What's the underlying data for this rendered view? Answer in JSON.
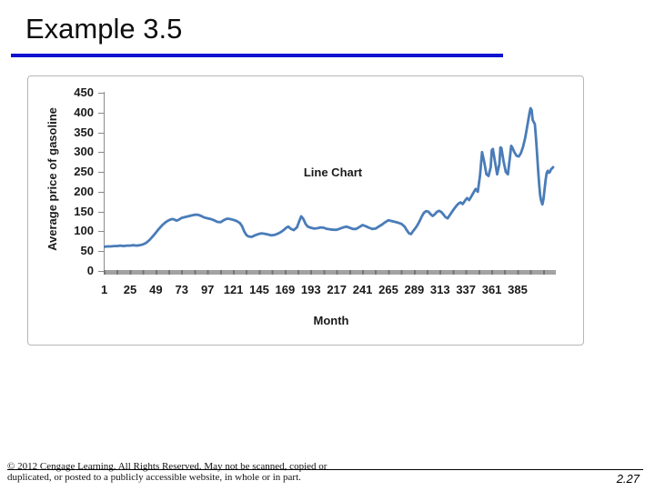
{
  "slide": {
    "title": "Example 3.5",
    "page_number": "2.27",
    "footer_line1": "© 2012 Cengage Learning. All Rights Reserved. May not be scanned, copied or",
    "footer_line2": "duplicated, or posted to a publicly accessible website, in whole or in part."
  },
  "colors": {
    "title_underline": "#1010d0",
    "series_line": "#4a7cb8",
    "axis_gray": "#8a8a8a",
    "chart_border": "#b6b6b6"
  },
  "chart_data": {
    "type": "line",
    "title": "Line Chart",
    "xlabel": "Month",
    "ylabel": "Average price of gasoline",
    "grid": false,
    "legend_position": "none",
    "xlim": [
      0,
      420
    ],
    "ylim": [
      0,
      450
    ],
    "x_ticks": [
      1,
      25,
      49,
      73,
      97,
      121,
      145,
      169,
      193,
      217,
      241,
      265,
      289,
      313,
      337,
      361,
      385
    ],
    "y_ticks": [
      0,
      50,
      100,
      150,
      200,
      250,
      300,
      350,
      400,
      450
    ],
    "series": [
      {
        "name": "Average price of gasoline",
        "points": [
          [
            1,
            61
          ],
          [
            4,
            62
          ],
          [
            7,
            62
          ],
          [
            10,
            63
          ],
          [
            13,
            63
          ],
          [
            16,
            64
          ],
          [
            19,
            63
          ],
          [
            22,
            64
          ],
          [
            25,
            64
          ],
          [
            28,
            65
          ],
          [
            31,
            64
          ],
          [
            34,
            65
          ],
          [
            37,
            67
          ],
          [
            40,
            71
          ],
          [
            43,
            78
          ],
          [
            46,
            87
          ],
          [
            49,
            97
          ],
          [
            52,
            107
          ],
          [
            55,
            116
          ],
          [
            58,
            123
          ],
          [
            61,
            128
          ],
          [
            64,
            131
          ],
          [
            66,
            130
          ],
          [
            68,
            127
          ],
          [
            70,
            129
          ],
          [
            73,
            134
          ],
          [
            76,
            136
          ],
          [
            79,
            138
          ],
          [
            82,
            140
          ],
          [
            85,
            142
          ],
          [
            88,
            142
          ],
          [
            91,
            139
          ],
          [
            94,
            135
          ],
          [
            97,
            133
          ],
          [
            100,
            131
          ],
          [
            103,
            128
          ],
          [
            106,
            124
          ],
          [
            109,
            123
          ],
          [
            112,
            128
          ],
          [
            115,
            132
          ],
          [
            118,
            131
          ],
          [
            121,
            129
          ],
          [
            124,
            126
          ],
          [
            127,
            121
          ],
          [
            129,
            113
          ],
          [
            131,
            100
          ],
          [
            133,
            91
          ],
          [
            135,
            87
          ],
          [
            138,
            86
          ],
          [
            141,
            90
          ],
          [
            144,
            93
          ],
          [
            147,
            95
          ],
          [
            150,
            94
          ],
          [
            153,
            92
          ],
          [
            156,
            90
          ],
          [
            159,
            91
          ],
          [
            162,
            94
          ],
          [
            165,
            98
          ],
          [
            168,
            104
          ],
          [
            170,
            109
          ],
          [
            172,
            112
          ],
          [
            174,
            107
          ],
          [
            177,
            103
          ],
          [
            180,
            110
          ],
          [
            182,
            125
          ],
          [
            184,
            138
          ],
          [
            186,
            131
          ],
          [
            188,
            119
          ],
          [
            190,
            112
          ],
          [
            193,
            109
          ],
          [
            196,
            107
          ],
          [
            199,
            108
          ],
          [
            202,
            110
          ],
          [
            205,
            109
          ],
          [
            208,
            106
          ],
          [
            211,
            105
          ],
          [
            214,
            104
          ],
          [
            217,
            104
          ],
          [
            220,
            107
          ],
          [
            223,
            110
          ],
          [
            226,
            112
          ],
          [
            229,
            109
          ],
          [
            232,
            106
          ],
          [
            235,
            106
          ],
          [
            238,
            111
          ],
          [
            241,
            116
          ],
          [
            244,
            113
          ],
          [
            247,
            109
          ],
          [
            250,
            106
          ],
          [
            253,
            107
          ],
          [
            256,
            112
          ],
          [
            259,
            117
          ],
          [
            262,
            123
          ],
          [
            265,
            128
          ],
          [
            268,
            126
          ],
          [
            271,
            124
          ],
          [
            274,
            122
          ],
          [
            277,
            119
          ],
          [
            280,
            112
          ],
          [
            282,
            103
          ],
          [
            284,
            95
          ],
          [
            286,
            93
          ],
          [
            288,
            101
          ],
          [
            290,
            108
          ],
          [
            292,
            116
          ],
          [
            294,
            126
          ],
          [
            296,
            138
          ],
          [
            298,
            147
          ],
          [
            300,
            151
          ],
          [
            302,
            150
          ],
          [
            304,
            144
          ],
          [
            306,
            139
          ],
          [
            308,
            143
          ],
          [
            310,
            149
          ],
          [
            312,
            152
          ],
          [
            314,
            149
          ],
          [
            316,
            143
          ],
          [
            318,
            136
          ],
          [
            320,
            133
          ],
          [
            322,
            141
          ],
          [
            324,
            149
          ],
          [
            326,
            157
          ],
          [
            328,
            164
          ],
          [
            330,
            170
          ],
          [
            332,
            173
          ],
          [
            334,
            169
          ],
          [
            336,
            177
          ],
          [
            338,
            184
          ],
          [
            340,
            179
          ],
          [
            342,
            188
          ],
          [
            344,
            198
          ],
          [
            346,
            207
          ],
          [
            348,
            200
          ],
          [
            350,
            240
          ],
          [
            352,
            300
          ],
          [
            354,
            275
          ],
          [
            356,
            244
          ],
          [
            358,
            240
          ],
          [
            360,
            262
          ],
          [
            361,
            305
          ],
          [
            362,
            308
          ],
          [
            364,
            276
          ],
          [
            366,
            244
          ],
          [
            368,
            270
          ],
          [
            369,
            312
          ],
          [
            370,
            310
          ],
          [
            372,
            276
          ],
          [
            374,
            250
          ],
          [
            376,
            244
          ],
          [
            378,
            290
          ],
          [
            379,
            316
          ],
          [
            380,
            312
          ],
          [
            382,
            300
          ],
          [
            384,
            291
          ],
          [
            386,
            289
          ],
          [
            388,
            297
          ],
          [
            390,
            313
          ],
          [
            392,
            336
          ],
          [
            394,
            366
          ],
          [
            396,
            398
          ],
          [
            397,
            411
          ],
          [
            398,
            406
          ],
          [
            399,
            381
          ],
          [
            400,
            376
          ],
          [
            401,
            371
          ],
          [
            402,
            338
          ],
          [
            403,
            298
          ],
          [
            404,
            256
          ],
          [
            405,
            218
          ],
          [
            406,
            190
          ],
          [
            407,
            176
          ],
          [
            408,
            168
          ],
          [
            409,
            181
          ],
          [
            410,
            206
          ],
          [
            411,
            230
          ],
          [
            412,
            247
          ],
          [
            413,
            253
          ],
          [
            414,
            248
          ],
          [
            415,
            250
          ],
          [
            416,
            257
          ],
          [
            417,
            259
          ],
          [
            418,
            262
          ]
        ]
      }
    ]
  }
}
